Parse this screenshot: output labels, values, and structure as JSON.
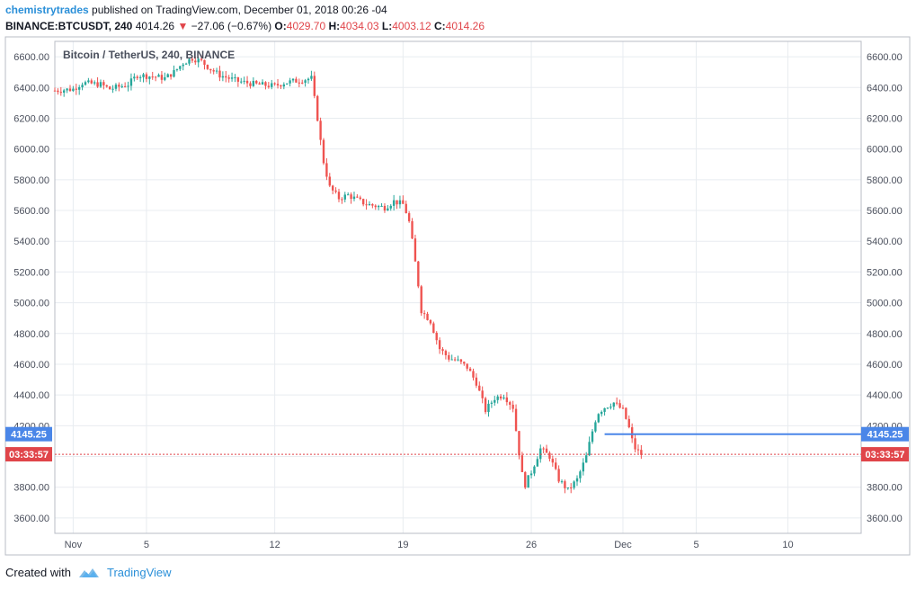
{
  "header": {
    "author": "chemistrytrades",
    "published_text": " published on TradingView.com, December 01, 2018 00:26 -04",
    "symbol": "BINANCE:BTCUSDT, 240",
    "last": "4014.26",
    "change": "−27.06 (−0.67%)",
    "o_label": "O:",
    "o_value": "4029.70",
    "h_label": "H:",
    "h_value": "4034.03",
    "l_label": "L:",
    "l_value": "4003.12",
    "c_label": "C:",
    "c_value": "4014.26"
  },
  "footer": {
    "created_with": "Created with",
    "brand": "TradingView"
  },
  "colors": {
    "up": "#26a69a",
    "down": "#ef5350",
    "price_line": "#4a86e8",
    "countdown": "#e0454a",
    "grid": "#e8ecf0"
  },
  "chart_data": {
    "type": "candlestick",
    "title": "Bitcoin / TetherUS, 240, BINANCE",
    "interval_hours": 4,
    "x_ticks": [
      {
        "label": "Nov",
        "day": 1
      },
      {
        "label": "5",
        "day": 5
      },
      {
        "label": "12",
        "day": 12
      },
      {
        "label": "19",
        "day": 19
      },
      {
        "label": "26",
        "day": 26
      },
      {
        "label": "Dec",
        "day": 31
      },
      {
        "label": "5",
        "day": 35
      },
      {
        "label": "10",
        "day": 40
      }
    ],
    "x_range_days": [
      0.0,
      44.0
    ],
    "y_ticks": [
      3600,
      3800,
      4000,
      4200,
      4400,
      4600,
      4800,
      5000,
      5200,
      5400,
      5600,
      5800,
      6000,
      6200,
      6400,
      6600
    ],
    "y_range": [
      3500,
      6700
    ],
    "y_tick_labels": [
      "3600.00",
      "3800.00",
      "4000.00",
      "4200.00",
      "4400.00",
      "4600.00",
      "4800.00",
      "5000.00",
      "5200.00",
      "5400.00",
      "5600.00",
      "5800.00",
      "6000.00",
      "6200.00",
      "6400.00",
      "6600.00"
    ],
    "close_path": [
      [
        0.0,
        6380
      ],
      [
        1.0,
        6390
      ],
      [
        1.5,
        6430
      ],
      [
        2.5,
        6420
      ],
      [
        3.0,
        6390
      ],
      [
        4.0,
        6420
      ],
      [
        4.5,
        6480
      ],
      [
        5.5,
        6470
      ],
      [
        6.0,
        6460
      ],
      [
        6.5,
        6500
      ],
      [
        7.0,
        6560
      ],
      [
        7.5,
        6590
      ],
      [
        8.0,
        6570
      ],
      [
        8.5,
        6520
      ],
      [
        9.0,
        6480
      ],
      [
        10.0,
        6440
      ],
      [
        11.0,
        6420
      ],
      [
        12.0,
        6410
      ],
      [
        12.5,
        6430
      ],
      [
        13.0,
        6440
      ],
      [
        13.5,
        6450
      ],
      [
        14.0,
        6460
      ],
      [
        14.2,
        6300
      ],
      [
        14.4,
        6150
      ],
      [
        14.6,
        5950
      ],
      [
        15.0,
        5750
      ],
      [
        15.5,
        5680
      ],
      [
        16.0,
        5700
      ],
      [
        17.0,
        5640
      ],
      [
        18.0,
        5620
      ],
      [
        18.5,
        5660
      ],
      [
        19.0,
        5640
      ],
      [
        19.3,
        5550
      ],
      [
        19.5,
        5400
      ],
      [
        19.8,
        5150
      ],
      [
        20.0,
        4950
      ],
      [
        20.5,
        4880
      ],
      [
        21.0,
        4700
      ],
      [
        21.5,
        4640
      ],
      [
        22.0,
        4620
      ],
      [
        22.5,
        4580
      ],
      [
        23.0,
        4480
      ],
      [
        23.5,
        4300
      ],
      [
        24.0,
        4380
      ],
      [
        24.5,
        4400
      ],
      [
        25.0,
        4320
      ],
      [
        25.3,
        4050
      ],
      [
        25.6,
        3800
      ],
      [
        26.0,
        3900
      ],
      [
        26.5,
        4050
      ],
      [
        27.0,
        4000
      ],
      [
        27.5,
        3850
      ],
      [
        28.0,
        3780
      ],
      [
        28.5,
        3850
      ],
      [
        29.0,
        4000
      ],
      [
        29.3,
        4150
      ],
      [
        29.6,
        4280
      ],
      [
        30.0,
        4320
      ],
      [
        30.5,
        4350
      ],
      [
        31.0,
        4300
      ],
      [
        31.3,
        4200
      ],
      [
        31.6,
        4060
      ],
      [
        32.0,
        4014
      ]
    ],
    "current_price": {
      "value": 4014.26,
      "label": "4014.26"
    },
    "horizontal_line": {
      "value": 4145.25,
      "label": "4145.25",
      "from_day": 30.0
    },
    "countdown": {
      "label": "03:33:57"
    }
  }
}
